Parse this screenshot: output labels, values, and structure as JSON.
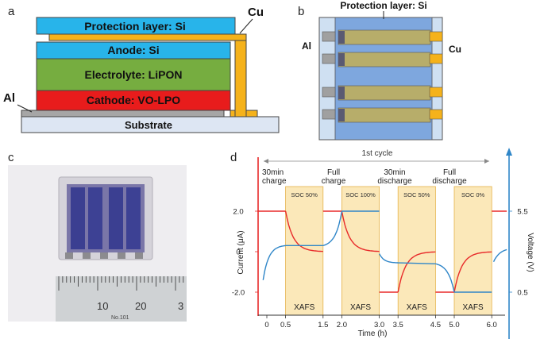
{
  "panels": {
    "a": "a",
    "b": "b",
    "c": "c",
    "d": "d"
  },
  "panel_a": {
    "layers": {
      "protection": "Protection layer: Si",
      "anode": "Anode: Si",
      "electrolyte": "Electrolyte: LiPON",
      "cathode": "Cathode: VO-LPO",
      "substrate": "Substrate"
    },
    "labels": {
      "cu": "Cu",
      "al": "Al"
    },
    "colors": {
      "si": "#28b4ea",
      "lipon": "#76ad40",
      "cathode": "#e81c1c",
      "substrate": "#dde6f3",
      "cu": "#f5b21b",
      "al": "#a6a6a6"
    }
  },
  "panel_b": {
    "title": "Protection layer: Si",
    "labels": {
      "al": "Al",
      "cu": "Cu"
    }
  },
  "panel_c": {
    "ruler_numbers": [
      "10",
      "20",
      "3"
    ],
    "ruler_small_text": "No.101"
  },
  "panel_d": {
    "cycle_label": "1st cycle",
    "xlabel": "Time (h)",
    "ylabel_left": "Current (μA)",
    "ylabel_right": "Voltage (V)",
    "x_ticks": [
      "0",
      "0.5",
      "1.5",
      "2.0",
      "3.0",
      "3.5",
      "4.5",
      "5.0",
      "6.0"
    ],
    "y_ticks_left": [
      "2.0",
      "0",
      "-2.0"
    ],
    "y_ticks_right": [
      "5.5",
      "0.5"
    ],
    "steps": [
      "30min\ncharge",
      "Full\ncharge",
      "30min\ndischarge",
      "Full\ndischarge"
    ],
    "soc_labels": [
      "SOC 50%",
      "SOC 100%",
      "SOC 50%",
      "SOC 0%"
    ],
    "xafs_label": "XAFS",
    "colors": {
      "current": "#e82a2a",
      "voltage": "#2f86c8",
      "shade": "#fbe8b9"
    }
  },
  "chart_data": {
    "type": "line",
    "x_ticks": [
      0,
      0.5,
      1.5,
      2.0,
      3.0,
      3.5,
      4.5,
      5.0,
      6.0
    ],
    "xlabel": "Time (h)",
    "ylabel": "Current (μA)",
    "y2label": "Voltage (V)",
    "ylim": [
      -2.0,
      2.0
    ],
    "shaded_intervals": [
      [
        0.5,
        1.5
      ],
      [
        2.0,
        3.0
      ],
      [
        3.5,
        4.5
      ],
      [
        5.0,
        6.0
      ]
    ],
    "series": [
      {
        "x": [
          0,
          0.5,
          0.7,
          1.0,
          1.5,
          2.0,
          2.2,
          2.5,
          3.0,
          3.5,
          3.7,
          4.0,
          4.5,
          5.0,
          5.2,
          5.5,
          6.0
        ],
        "values": [
          2.0,
          2.0,
          0.9,
          0.3,
          0.0,
          2.0,
          0.9,
          0.3,
          0.0,
          -2.0,
          -0.9,
          -0.3,
          0.0,
          -2.0,
          -0.9,
          -0.3,
          0.0
        ]
      },
      {
        "x": [
          0,
          0.15,
          0.5,
          1.0,
          1.5,
          2.0,
          2.5,
          3.0,
          3.5,
          4.0,
          4.5,
          5.0,
          5.5,
          6.0
        ],
        "values": [
          -1.3,
          -0.3,
          0.3,
          0.3,
          0.3,
          2.0,
          2.0,
          2.0,
          -0.4,
          -0.6,
          -0.6,
          -2.0,
          -2.0,
          -2.0
        ]
      }
    ]
  }
}
